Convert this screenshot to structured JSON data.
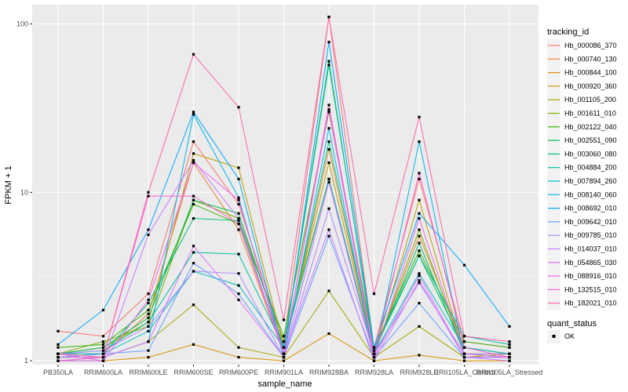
{
  "chart_data": {
    "type": "line",
    "title": "",
    "xlabel": "sample_name",
    "ylabel": "FPKM + 1",
    "y_scale": "log10",
    "ylim": [
      0.95,
      130
    ],
    "y_ticks": [
      1,
      10,
      100
    ],
    "y_tick_labels": [
      "1",
      "10",
      "100"
    ],
    "grid": true,
    "panel_background": "#ebebeb",
    "grid_color": "#ffffff",
    "legend_position": "right",
    "categories": [
      "PB350LA",
      "RRIM600LA",
      "RRIM600LE",
      "RRIM600SE",
      "RRIM600PE",
      "RRIM901LA",
      "RRIM928BA",
      "RRIM928LA",
      "RRIM928LE",
      "RRII105LA_Control",
      "RRII105LA_Stressed"
    ],
    "series": [
      {
        "name": "Hb_000086_370",
        "color": "#F8766D",
        "values": [
          1.5,
          1.4,
          2.5,
          20.0,
          8.5,
          1.3,
          110.0,
          1.2,
          12.0,
          1.3,
          1.2
        ]
      },
      {
        "name": "Hb_000740_130",
        "color": "#EA8331",
        "values": [
          1.1,
          1.1,
          1.9,
          15.0,
          6.0,
          1.1,
          18.0,
          1.1,
          5.5,
          1.2,
          1.1
        ]
      },
      {
        "name": "Hb_000844_100",
        "color": "#D89000",
        "values": [
          1.0,
          1.0,
          1.05,
          1.25,
          1.05,
          1.0,
          1.45,
          1.0,
          1.08,
          1.0,
          1.0
        ]
      },
      {
        "name": "Hb_000920_360",
        "color": "#C09B00",
        "values": [
          1.1,
          1.2,
          1.7,
          17.0,
          14.0,
          1.2,
          15.0,
          1.1,
          9.0,
          1.1,
          1.05
        ]
      },
      {
        "name": "Hb_001105_200",
        "color": "#A3A500",
        "values": [
          1.05,
          1.05,
          1.3,
          2.15,
          1.2,
          1.05,
          2.6,
          1.05,
          1.6,
          1.05,
          1.1
        ]
      },
      {
        "name": "Hb_001611_010",
        "color": "#7CAE00",
        "values": [
          1.1,
          1.3,
          1.6,
          9.0,
          7.0,
          1.3,
          12.0,
          1.1,
          6.0,
          1.1,
          1.1
        ]
      },
      {
        "name": "Hb_002122_040",
        "color": "#39B600",
        "values": [
          1.2,
          1.25,
          2.0,
          8.5,
          6.5,
          1.4,
          30.0,
          1.2,
          4.5,
          1.3,
          1.2
        ]
      },
      {
        "name": "Hb_002551_090",
        "color": "#00BB4E",
        "values": [
          1.1,
          1.2,
          1.8,
          9.0,
          7.5,
          1.2,
          60.0,
          1.15,
          4.2,
          1.2,
          1.1
        ]
      },
      {
        "name": "Hb_003060_080",
        "color": "#00BF7D",
        "values": [
          1.05,
          1.1,
          2.2,
          7.0,
          6.8,
          1.1,
          20.0,
          1.1,
          5.0,
          1.1,
          1.05
        ]
      },
      {
        "name": "Hb_004884_200",
        "color": "#00C1A3",
        "values": [
          1.1,
          1.15,
          1.7,
          4.4,
          4.3,
          1.2,
          57.0,
          1.2,
          4.2,
          1.4,
          1.25
        ]
      },
      {
        "name": "Hb_007894_260",
        "color": "#00BFC4",
        "values": [
          1.1,
          1.1,
          1.5,
          3.4,
          2.8,
          1.2,
          12.0,
          1.1,
          3.3,
          1.2,
          1.1
        ]
      },
      {
        "name": "Hb_008140_060",
        "color": "#00B8E7",
        "values": [
          1.0,
          1.05,
          1.3,
          29.0,
          9.3,
          1.05,
          24.0,
          1.05,
          20.0,
          1.05,
          1.05
        ]
      },
      {
        "name": "Hb_008692_010",
        "color": "#00A9FF",
        "values": [
          1.25,
          2.0,
          6.0,
          30.0,
          12.0,
          1.1,
          78.0,
          1.2,
          7.5,
          3.7,
          1.6
        ]
      },
      {
        "name": "Hb_009642_010",
        "color": "#619CFF",
        "values": [
          1.05,
          1.1,
          1.15,
          3.8,
          2.5,
          1.05,
          5.5,
          1.05,
          2.2,
          1.05,
          1.05
        ]
      },
      {
        "name": "Hb_009785_010",
        "color": "#AE87FF",
        "values": [
          1.1,
          1.15,
          1.6,
          3.4,
          3.3,
          1.05,
          8.0,
          1.1,
          2.9,
          1.1,
          1.1
        ]
      },
      {
        "name": "Hb_014037_010",
        "color": "#C77CFF",
        "values": [
          1.0,
          1.0,
          5.6,
          15.5,
          7.0,
          1.1,
          6.0,
          1.0,
          3.0,
          1.05,
          1.0
        ]
      },
      {
        "name": "Hb_054865_030",
        "color": "#DE71F9",
        "values": [
          1.05,
          1.05,
          1.3,
          4.8,
          2.3,
          1.05,
          11.5,
          1.05,
          3.2,
          1.05,
          1.05
        ]
      },
      {
        "name": "Hb_088916_010",
        "color": "#EF67EB",
        "values": [
          1.1,
          1.0,
          2.3,
          15.0,
          9.0,
          1.1,
          31.0,
          1.05,
          7.0,
          1.1,
          1.05
        ]
      },
      {
        "name": "Hb_132515_010",
        "color": "#FB61D7",
        "values": [
          1.0,
          1.05,
          9.5,
          9.5,
          6.5,
          1.1,
          33.0,
          1.1,
          13.0,
          1.2,
          1.05
        ]
      },
      {
        "name": "Hb_182021_010",
        "color": "#FF65AE",
        "values": [
          1.1,
          1.05,
          10.0,
          66.0,
          32.0,
          1.75,
          110.0,
          2.5,
          28.0,
          1.4,
          1.3
        ]
      }
    ],
    "legend": {
      "title": "tracking_id"
    },
    "legend2": {
      "title": "quant_status",
      "entries": [
        "OK"
      ]
    }
  }
}
